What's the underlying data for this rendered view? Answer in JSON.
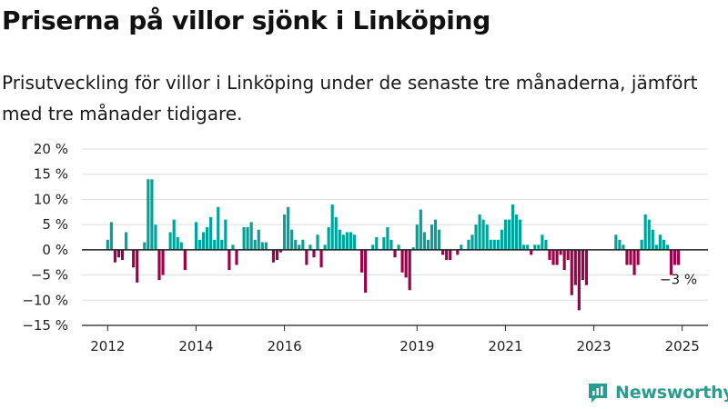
{
  "header": {
    "title": "Priserna på villor sjönk i Linköping",
    "subtitle": "Prisutveckling för villor i Linköping under de senaste tre månaderna, jämfört med tre månader tidigare."
  },
  "brand": {
    "name": "Newsworthy",
    "icon": "newsworthy-logo-icon"
  },
  "colors": {
    "positive": "#00a39a",
    "negative": "#9c0048",
    "grid": "#dddddd",
    "axis": "#222222",
    "brand": "#2a9d8f"
  },
  "chart_data": {
    "type": "bar",
    "title": "",
    "xlabel": "",
    "ylabel": "",
    "ylim": [
      -15,
      20
    ],
    "yticks": [
      20,
      15,
      10,
      5,
      0,
      -5,
      -10,
      -15
    ],
    "ytick_labels": [
      "20 %",
      "15 %",
      "10 %",
      "5 %",
      "0 %",
      "−5 %",
      "−10 %",
      "−15 %"
    ],
    "x_start": "2012-01",
    "xlim": [
      "2011-06",
      "2025-08"
    ],
    "xticks": [
      "2012-01",
      "2014-01",
      "2016-01",
      "2019-01",
      "2021-01",
      "2023-01",
      "2025-01"
    ],
    "xtick_labels": [
      "2012",
      "2014",
      "2016",
      "2019",
      "2021",
      "2023",
      "2025"
    ],
    "grid": true,
    "legend": "none",
    "annotation": {
      "text": "−3 %",
      "x": "2024-12",
      "y": -3
    },
    "values": [
      2,
      5.5,
      -2.5,
      -1.5,
      -2,
      3.5,
      null,
      -3.5,
      -6.5,
      null,
      1.5,
      14,
      14,
      5,
      -6,
      -5,
      null,
      3.5,
      6,
      2.5,
      1.5,
      -4,
      null,
      null,
      5.5,
      2,
      3.5,
      4.5,
      6.5,
      2,
      8.5,
      2,
      6,
      -4,
      1,
      -3,
      null,
      4.5,
      4.5,
      5.5,
      2,
      4,
      1.5,
      1.5,
      null,
      -2.5,
      -2,
      -0.5,
      7,
      8.5,
      4,
      2,
      1,
      2,
      -3,
      1,
      -1.5,
      3,
      -3.5,
      1,
      4.5,
      9,
      6.5,
      4,
      3,
      3.5,
      3.5,
      3,
      null,
      -4.5,
      -8.5,
      null,
      1,
      2.5,
      null,
      2.5,
      4.5,
      2,
      -1.5,
      1,
      -4.5,
      -5.5,
      -8,
      0.5,
      5,
      8,
      3.5,
      2,
      5,
      6,
      4,
      -1,
      -2,
      -2,
      null,
      -1,
      1,
      null,
      2,
      3,
      5,
      7,
      6,
      5,
      2,
      2,
      2,
      4,
      6,
      6,
      9,
      7,
      6,
      1,
      1,
      -1,
      1,
      1,
      3,
      2,
      -2,
      -3,
      -3,
      -1,
      -4,
      -2,
      -9,
      -7,
      -12,
      -6,
      -7,
      null,
      null,
      null,
      null,
      null,
      null,
      null,
      3,
      2,
      1,
      -3,
      -3,
      -5,
      -3,
      2,
      7,
      6,
      4,
      1,
      3,
      2,
      1,
      -5,
      -3,
      -3
    ]
  }
}
